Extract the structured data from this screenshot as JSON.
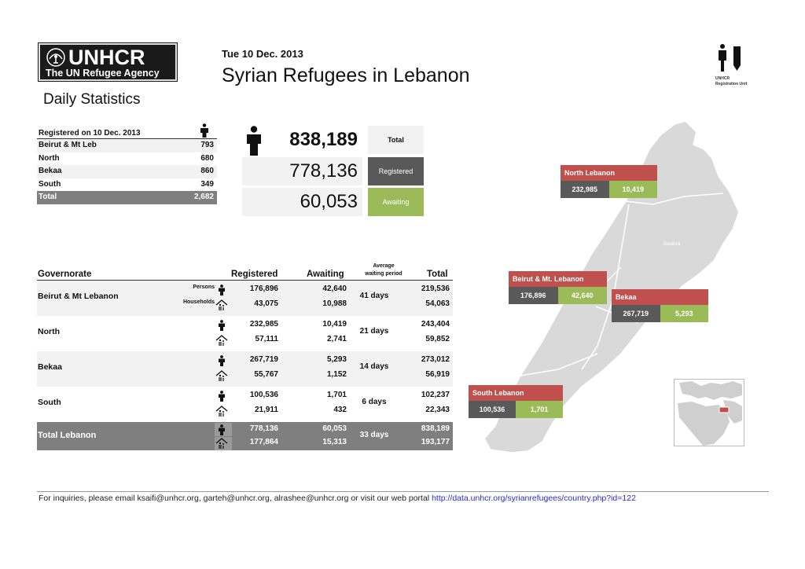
{
  "header": {
    "logo_name": "UNHCR",
    "logo_tagline": "The UN Refugee Agency",
    "date": "Tue 10 Dec. 2013",
    "title": "Syrian Refugees in Lebanon",
    "subtitle": "Daily Statistics",
    "reg_unit_line1": "UNHCR",
    "reg_unit_line2": "Registration Unit"
  },
  "daily": {
    "header": "Registered on 10 Dec. 2013",
    "rows": [
      {
        "label": "Beirut & Mt Leb",
        "value": "793"
      },
      {
        "label": "North",
        "value": "680"
      },
      {
        "label": "Bekaa",
        "value": "860"
      },
      {
        "label": "South",
        "value": "349"
      }
    ],
    "total_label": "Total",
    "total_value": "2,682"
  },
  "summary": {
    "total_value": "838,189",
    "total_label": "Total",
    "registered_value": "778,136",
    "registered_label": "Registered",
    "awaiting_value": "60,053",
    "awaiting_label": "Awaiting"
  },
  "table": {
    "col_governorate": "Governorate",
    "col_registered": "Registered",
    "col_awaiting": "Awaiting",
    "col_avg_line1": "Average",
    "col_avg_line2": "waiting period",
    "col_total": "Total",
    "persons_label": "Persons",
    "households_label": "Households",
    "rows": [
      {
        "name": "Beirut & Mt Lebanon",
        "reg_p": "176,896",
        "reg_h": "43,075",
        "awt_p": "42,640",
        "awt_h": "10,988",
        "days": "41 days",
        "tot_p": "219,536",
        "tot_h": "54,063"
      },
      {
        "name": "North",
        "reg_p": "232,985",
        "reg_h": "57,111",
        "awt_p": "10,419",
        "awt_h": "2,741",
        "days": "21 days",
        "tot_p": "243,404",
        "tot_h": "59,852"
      },
      {
        "name": "Bekaa",
        "reg_p": "267,719",
        "reg_h": "55,767",
        "awt_p": "5,293",
        "awt_h": "1,152",
        "days": "14 days",
        "tot_p": "273,012",
        "tot_h": "56,919"
      },
      {
        "name": "South",
        "reg_p": "100,536",
        "reg_h": "21,911",
        "awt_p": "1,701",
        "awt_h": "432",
        "days": "6 days",
        "tot_p": "102,237",
        "tot_h": "22,343"
      }
    ],
    "total": {
      "name": "Total Lebanon",
      "reg_p": "778,136",
      "reg_h": "177,864",
      "awt_p": "60,053",
      "awt_h": "15,313",
      "days": "33 days",
      "tot_p": "838,189",
      "tot_h": "193,177"
    }
  },
  "map": {
    "city_label": "Baalbek",
    "callouts": [
      {
        "name": "North Lebanon",
        "registered": "232,985",
        "awaiting": "10,419"
      },
      {
        "name": "Beirut & Mt. Lebanon",
        "registered": "176,896",
        "awaiting": "42,640"
      },
      {
        "name": "Bekaa",
        "registered": "267,719",
        "awaiting": "5,293"
      },
      {
        "name": "South Lebanon",
        "registered": "100,536",
        "awaiting": "1,701"
      }
    ]
  },
  "footer": {
    "text": "For inquiries, please email ksaifi@unhcr.org, garteh@unhcr.org, alrashee@unhcr.org or visit our web portal ",
    "url": "http://data.unhcr.org/syrianrefugees/country.php?id=122"
  },
  "colors": {
    "registered": "#595959",
    "awaiting": "#9bbb59",
    "callout_header": "#c0504d",
    "total_row": "#7f7f7f"
  }
}
